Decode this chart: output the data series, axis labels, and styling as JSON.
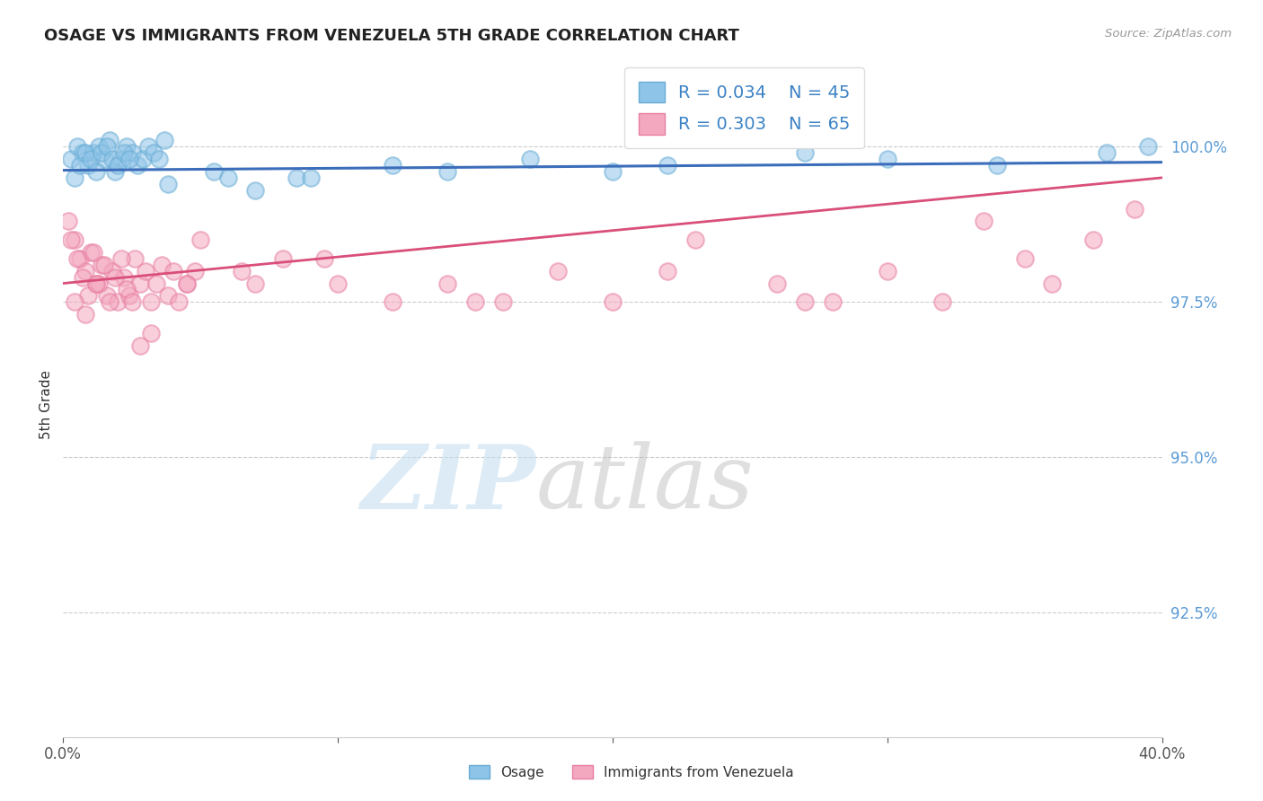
{
  "title": "OSAGE VS IMMIGRANTS FROM VENEZUELA 5TH GRADE CORRELATION CHART",
  "source_text": "Source: ZipAtlas.com",
  "ylabel": "5th Grade",
  "xlim": [
    0.0,
    40.0
  ],
  "ylim": [
    90.5,
    101.2
  ],
  "yticks": [
    92.5,
    95.0,
    97.5,
    100.0
  ],
  "ytick_labels": [
    "92.5%",
    "95.0%",
    "97.5%",
    "100.0%"
  ],
  "xticks": [
    0.0,
    10.0,
    20.0,
    30.0,
    40.0
  ],
  "xtick_labels": [
    "0.0%",
    "",
    "",
    "",
    "40.0%"
  ],
  "blue_color": "#8ec4e8",
  "pink_color": "#f4a8bf",
  "blue_edge_color": "#6aadd5",
  "pink_edge_color": "#e87fa3",
  "blue_line_color": "#3b6dba",
  "pink_line_color": "#d94f7a",
  "R_blue": 0.034,
  "N_blue": 45,
  "R_pink": 0.303,
  "N_pink": 65,
  "legend_label_blue": "Osage",
  "legend_label_pink": "Immigrants from Venezuela",
  "blue_scatter_x": [
    0.3,
    0.5,
    0.7,
    0.9,
    1.1,
    1.3,
    1.5,
    1.7,
    1.9,
    2.1,
    2.3,
    2.5,
    2.7,
    2.9,
    3.1,
    3.3,
    3.5,
    3.7,
    0.4,
    0.6,
    0.8,
    1.0,
    1.2,
    1.4,
    1.6,
    1.8,
    2.0,
    2.2,
    2.4,
    5.5,
    7.0,
    8.5,
    12.0,
    17.0,
    20.0,
    22.0,
    27.0,
    30.0,
    34.0,
    38.0,
    39.5,
    9.0,
    14.0,
    3.8,
    6.0
  ],
  "blue_scatter_y": [
    99.8,
    100.0,
    99.9,
    99.7,
    99.9,
    100.0,
    99.8,
    100.1,
    99.6,
    99.8,
    100.0,
    99.9,
    99.7,
    99.8,
    100.0,
    99.9,
    99.8,
    100.1,
    99.5,
    99.7,
    99.9,
    99.8,
    99.6,
    99.9,
    100.0,
    99.8,
    99.7,
    99.9,
    99.8,
    99.6,
    99.3,
    99.5,
    99.7,
    99.8,
    99.6,
    99.7,
    99.9,
    99.8,
    99.7,
    99.9,
    100.0,
    99.5,
    99.6,
    99.4,
    99.5
  ],
  "pink_scatter_x": [
    0.2,
    0.4,
    0.6,
    0.8,
    1.0,
    1.2,
    1.4,
    1.6,
    1.8,
    2.0,
    2.2,
    2.4,
    2.6,
    2.8,
    3.0,
    3.2,
    3.4,
    3.6,
    3.8,
    4.0,
    4.2,
    4.5,
    4.8,
    0.3,
    0.5,
    0.7,
    0.9,
    1.1,
    1.3,
    1.5,
    1.7,
    1.9,
    2.1,
    2.3,
    2.5,
    0.4,
    0.8,
    1.2,
    5.0,
    6.5,
    8.0,
    10.0,
    12.0,
    14.0,
    16.0,
    18.0,
    20.0,
    23.0,
    26.0,
    28.0,
    30.0,
    32.0,
    33.5,
    35.0,
    36.0,
    37.5,
    39.0,
    7.0,
    9.5,
    15.0,
    22.0,
    27.0,
    3.2,
    4.5,
    2.8
  ],
  "pink_scatter_y": [
    98.8,
    98.5,
    98.2,
    98.0,
    98.3,
    97.8,
    98.1,
    97.6,
    98.0,
    97.5,
    97.9,
    97.6,
    98.2,
    97.8,
    98.0,
    97.5,
    97.8,
    98.1,
    97.6,
    98.0,
    97.5,
    97.8,
    98.0,
    98.5,
    98.2,
    97.9,
    97.6,
    98.3,
    97.8,
    98.1,
    97.5,
    97.9,
    98.2,
    97.7,
    97.5,
    97.5,
    97.3,
    97.8,
    98.5,
    98.0,
    98.2,
    97.8,
    97.5,
    97.8,
    97.5,
    98.0,
    97.5,
    98.5,
    97.8,
    97.5,
    98.0,
    97.5,
    98.8,
    98.2,
    97.8,
    98.5,
    99.0,
    97.8,
    98.2,
    97.5,
    98.0,
    97.5,
    97.0,
    97.8,
    96.8
  ],
  "blue_line_x0": 0.0,
  "blue_line_x1": 40.0,
  "blue_line_y0": 99.62,
  "blue_line_y1": 99.75,
  "pink_line_x0": 0.0,
  "pink_line_x1": 40.0,
  "pink_line_y0": 97.8,
  "pink_line_y1": 99.5
}
